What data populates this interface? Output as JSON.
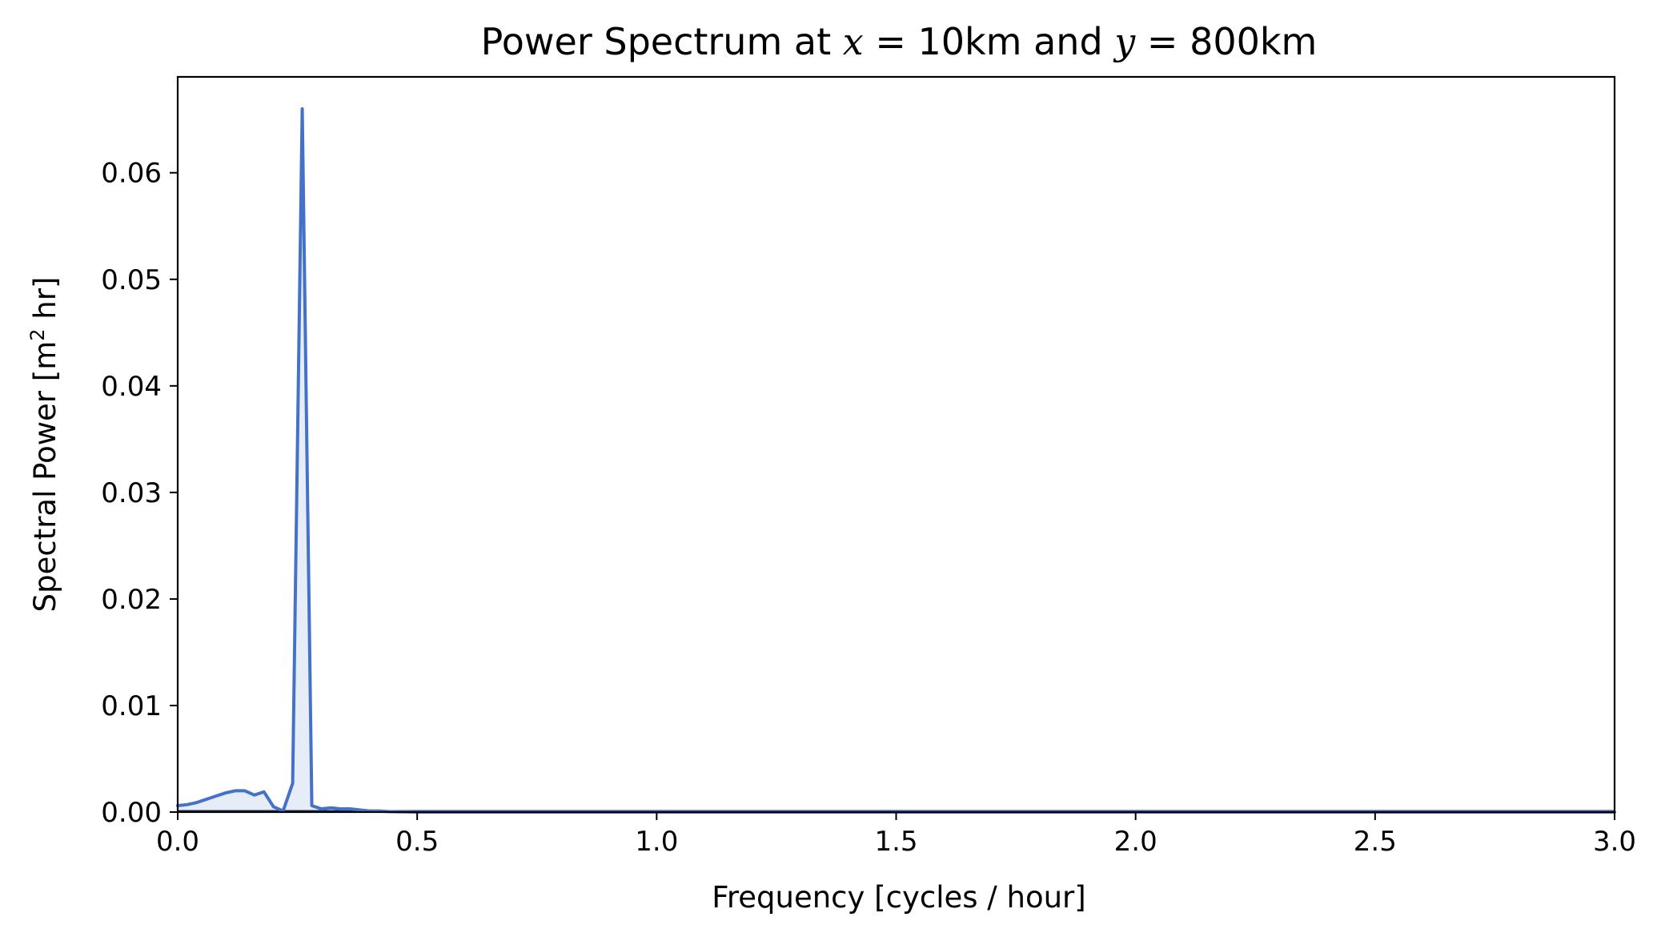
{
  "colors": {
    "line": "#4472c8",
    "fill": "#e6edf7",
    "baseline": "#1a2a55"
  },
  "chart_data": {
    "type": "area",
    "title": {
      "prefix": "Power Spectrum at ",
      "var1": "x",
      "eq1": " = ",
      "val1": "10km",
      "middle": " and ",
      "var2": "y",
      "eq2": " = ",
      "val2": "800km"
    },
    "xlabel": "Frequency [cycles / hour]",
    "ylabel": {
      "prefix": "Spectral Power [m",
      "sup": "2",
      "suffix": " hr]"
    },
    "xlim": [
      0,
      3.0
    ],
    "ylim": [
      0,
      0.069
    ],
    "xticks": [
      0.0,
      0.5,
      1.0,
      1.5,
      2.0,
      2.5,
      3.0
    ],
    "xtick_labels": [
      "0.0",
      "0.5",
      "1.0",
      "1.5",
      "2.0",
      "2.5",
      "3.0"
    ],
    "yticks": [
      0.0,
      0.01,
      0.02,
      0.03,
      0.04,
      0.05,
      0.06
    ],
    "ytick_labels": [
      "0.00",
      "0.01",
      "0.02",
      "0.03",
      "0.04",
      "0.05",
      "0.06"
    ],
    "grid": false,
    "series": [
      {
        "x": [
          0.0,
          0.02,
          0.04,
          0.06,
          0.08,
          0.1,
          0.12,
          0.14,
          0.16,
          0.18,
          0.2,
          0.22,
          0.24,
          0.26,
          0.28,
          0.3,
          0.32,
          0.34,
          0.36,
          0.38,
          0.4,
          0.42,
          0.44,
          0.46,
          0.5,
          0.6,
          0.8,
          1.0,
          1.5,
          2.0,
          2.5,
          3.0
        ],
        "y": [
          0.0006,
          0.0007,
          0.0009,
          0.0012,
          0.0015,
          0.0018,
          0.002,
          0.002,
          0.0016,
          0.0019,
          0.0005,
          0.0001,
          0.0027,
          0.066,
          0.0006,
          0.0003,
          0.0004,
          0.0003,
          0.0003,
          0.0002,
          0.0001,
          0.0001,
          5e-05,
          3e-05,
          0.0,
          0.0,
          0.0,
          0.0,
          0.0,
          0.0,
          0.0,
          0.0
        ]
      }
    ]
  }
}
